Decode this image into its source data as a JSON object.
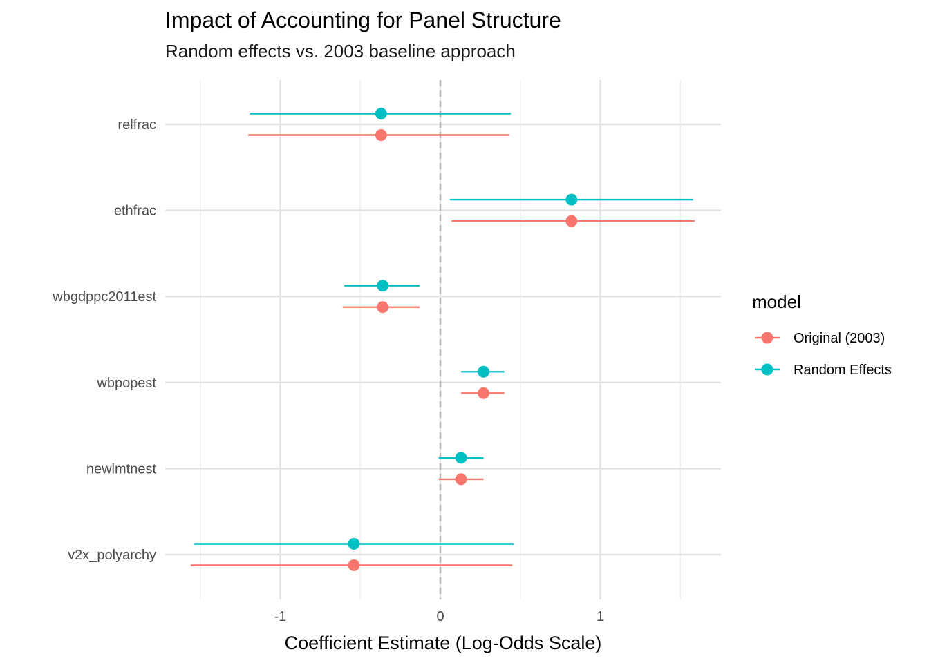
{
  "chart_data": {
    "type": "dot-whisker",
    "title": "Impact of Accounting for Panel Structure",
    "subtitle": "Random effects vs. 2003 baseline approach",
    "xlabel": "Coefficient Estimate (Log-Odds Scale)",
    "ylabel": "",
    "xlim": [
      -1.7,
      1.75
    ],
    "x_ticks": [
      -1,
      0,
      1
    ],
    "x_tick_labels": [
      "-1",
      "0",
      "1"
    ],
    "reference_line": 0,
    "grid": true,
    "terms": [
      "relfrac",
      "ethfrac",
      "wbgdppc2011est",
      "wbpopest",
      "newlmtnest",
      "v2x_polyarchy"
    ],
    "series": [
      {
        "name": "Original (2003)",
        "color": "#F8766D",
        "estimates": [
          -0.37,
          0.82,
          -0.36,
          0.27,
          0.13,
          -0.54
        ],
        "lower": [
          -1.2,
          0.07,
          -0.61,
          0.13,
          -0.01,
          -1.56
        ],
        "upper": [
          0.43,
          1.59,
          -0.13,
          0.4,
          0.27,
          0.45
        ]
      },
      {
        "name": "Random Effects",
        "color": "#00BFC4",
        "estimates": [
          -0.37,
          0.82,
          -0.36,
          0.27,
          0.13,
          -0.54
        ],
        "lower": [
          -1.19,
          0.06,
          -0.6,
          0.13,
          -0.01,
          -1.54
        ],
        "upper": [
          0.44,
          1.58,
          -0.13,
          0.4,
          0.27,
          0.46
        ]
      }
    ],
    "legend": {
      "title": "model",
      "position": "right"
    }
  }
}
